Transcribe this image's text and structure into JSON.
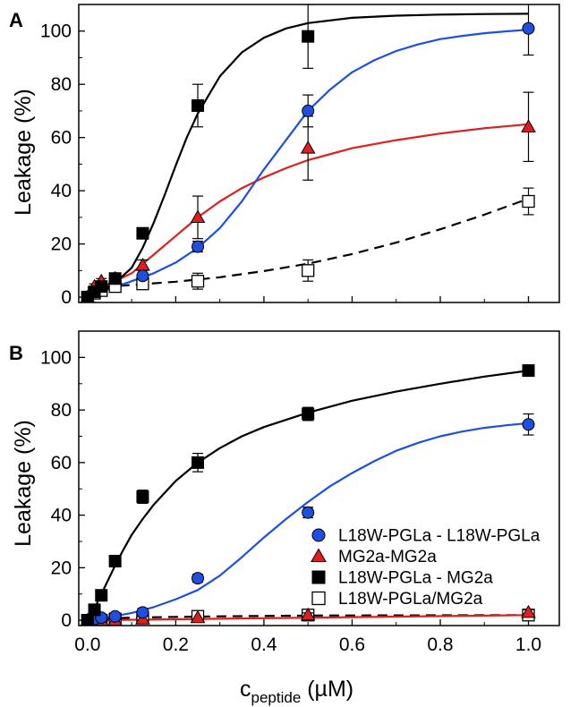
{
  "figure": {
    "y_axis_title": "Leakage (%)",
    "x_axis_title_main": "c",
    "x_axis_title_sub": "peptide",
    "x_axis_title_unit": " (µM)"
  },
  "legend": [
    {
      "label": "L18W-PGLa - L18W-PGLa",
      "marker": "circle",
      "color": "#1f4fe0"
    },
    {
      "label": "MG2a-MG2a",
      "marker": "triangle",
      "color": "#e01e1e"
    },
    {
      "label": "L18W-PGLa - MG2a",
      "marker": "square",
      "color": "#000000"
    },
    {
      "label": "L18W-PGLa/MG2a",
      "marker": "open-square",
      "color": "#000000"
    }
  ],
  "chart_data": [
    {
      "type": "scatter",
      "panel": "A",
      "xlabel": "c_peptide (µM)",
      "ylabel": "Leakage (%)",
      "xlim": [
        -0.02,
        1.07
      ],
      "ylim": [
        -2,
        110
      ],
      "xticks": [
        "0.0",
        "0.2",
        "0.4",
        "0.6",
        "0.8",
        "1.0"
      ],
      "yticks": [
        "0",
        "20",
        "40",
        "60",
        "80",
        "100"
      ],
      "series": [
        {
          "name": "L18W-PGLa - L18W-PGLa",
          "marker": "circle",
          "color": "#1f4fe0",
          "line": "solid",
          "x": [
            0,
            0.0156,
            0.03125,
            0.0625,
            0.125,
            0.25,
            0.5,
            1.0
          ],
          "y": [
            0,
            2,
            4,
            7,
            8,
            19,
            70,
            101
          ],
          "err": [
            0.5,
            0.5,
            1,
            1,
            1,
            2,
            6,
            10
          ],
          "fit_x": [
            0.0,
            0.05,
            0.1,
            0.15,
            0.2,
            0.25,
            0.3,
            0.35,
            0.4,
            0.45,
            0.5,
            0.55,
            0.6,
            0.65,
            0.7,
            0.75,
            0.8,
            0.85,
            0.9,
            0.95,
            1.0
          ],
          "fit_y": [
            1.5,
            3,
            6,
            9,
            13,
            18.5,
            26,
            36,
            48,
            59,
            70,
            78,
            84.5,
            89,
            92.5,
            95,
            97,
            98.2,
            99.2,
            99.9,
            100.5
          ]
        },
        {
          "name": "MG2a-MG2a",
          "marker": "triangle",
          "color": "#e01e1e",
          "line": "solid",
          "x": [
            0,
            0.0156,
            0.03125,
            0.0625,
            0.125,
            0.25,
            0.5,
            1.0
          ],
          "y": [
            0,
            4,
            6,
            7,
            12,
            30,
            56,
            64
          ],
          "err": [
            0.5,
            1,
            1,
            1,
            2,
            8,
            12,
            13
          ],
          "fit_x": [
            0.0,
            0.05,
            0.1,
            0.15,
            0.2,
            0.25,
            0.3,
            0.35,
            0.4,
            0.45,
            0.5,
            0.6,
            0.7,
            0.8,
            0.9,
            1.0
          ],
          "fit_y": [
            2.5,
            5,
            9,
            16,
            23,
            30,
            36,
            41,
            45,
            48.5,
            51.5,
            56,
            59,
            61.5,
            63.5,
            65
          ]
        },
        {
          "name": "L18W-PGLa - MG2a",
          "marker": "square",
          "color": "#000000",
          "line": "solid",
          "x": [
            0,
            0.0156,
            0.03125,
            0.0625,
            0.125,
            0.25,
            0.5,
            1.0
          ],
          "y": [
            0,
            2,
            4,
            7,
            24,
            72,
            98,
            null
          ],
          "err": [
            0.5,
            0.5,
            1,
            1.5,
            2,
            8,
            12,
            0
          ],
          "fit_x": [
            0.0,
            0.05,
            0.1,
            0.125,
            0.15,
            0.175,
            0.2,
            0.225,
            0.25,
            0.3,
            0.35,
            0.4,
            0.45,
            0.5,
            0.6,
            0.7,
            0.8,
            0.9,
            1.0
          ],
          "fit_y": [
            0.5,
            3.5,
            11,
            18.5,
            28,
            38.5,
            49.5,
            60,
            69,
            83,
            92,
            97.5,
            101,
            103,
            105,
            105.8,
            106.2,
            106.4,
            106.5
          ]
        },
        {
          "name": "L18W-PGLa/MG2a",
          "marker": "open-square",
          "color": "#000000",
          "line": "dashed",
          "x": [
            0,
            0.0156,
            0.03125,
            0.0625,
            0.125,
            0.25,
            0.5,
            1.0
          ],
          "y": [
            0,
            1.5,
            2.5,
            4,
            5,
            6,
            10,
            36
          ],
          "err": [
            0.5,
            0.5,
            0.5,
            1,
            1,
            3,
            4,
            5
          ],
          "fit_x": [
            0.0,
            0.05,
            0.1,
            0.2,
            0.3,
            0.4,
            0.5,
            0.6,
            0.7,
            0.8,
            0.9,
            1.0
          ],
          "fit_y": [
            3.5,
            4,
            4.6,
            5.8,
            7.5,
            9.8,
            12.6,
            16.2,
            20.5,
            25.5,
            31,
            37
          ]
        }
      ]
    },
    {
      "type": "scatter",
      "panel": "B",
      "xlabel": "c_peptide (µM)",
      "ylabel": "Leakage (%)",
      "xlim": [
        -0.02,
        1.07
      ],
      "ylim": [
        -2,
        110
      ],
      "xticks": [
        "0.0",
        "0.2",
        "0.4",
        "0.6",
        "0.8",
        "1.0"
      ],
      "yticks": [
        "0",
        "20",
        "40",
        "60",
        "80",
        "100"
      ],
      "series": [
        {
          "name": "L18W-PGLa - L18W-PGLa",
          "marker": "circle",
          "color": "#1f4fe0",
          "line": "solid",
          "x": [
            0,
            0.0156,
            0.03125,
            0.0625,
            0.125,
            0.25,
            0.5,
            1.0
          ],
          "y": [
            0,
            0.5,
            1,
            1.5,
            3,
            16,
            41,
            74.5
          ],
          "err": [
            0.5,
            0.5,
            0.5,
            1,
            1.5,
            1.5,
            2,
            4
          ],
          "fit_x": [
            0.0,
            0.05,
            0.1,
            0.15,
            0.2,
            0.25,
            0.3,
            0.35,
            0.4,
            0.45,
            0.5,
            0.55,
            0.6,
            0.65,
            0.7,
            0.75,
            0.8,
            0.85,
            0.9,
            0.95,
            1.0
          ],
          "fit_y": [
            0.5,
            1.2,
            2.8,
            5,
            8,
            11.5,
            17,
            24,
            31.5,
            38.5,
            45,
            51,
            56,
            60.5,
            64.5,
            67.5,
            70,
            71.8,
            73.2,
            74.2,
            75
          ]
        },
        {
          "name": "MG2a-MG2a",
          "marker": "triangle",
          "color": "#e01e1e",
          "line": "solid",
          "x": [
            0,
            0.0156,
            0.03125,
            0.0625,
            0.125,
            0.25,
            0.5,
            1.0
          ],
          "y": [
            0,
            0,
            0,
            0,
            0.5,
            1,
            2,
            3
          ],
          "err": [
            0.3,
            0.3,
            0.3,
            0.3,
            0.5,
            0.5,
            0.8,
            1
          ],
          "fit_x": [
            0.0,
            1.0
          ],
          "fit_y": [
            0,
            2
          ]
        },
        {
          "name": "L18W-PGLa - MG2a",
          "marker": "square",
          "color": "#000000",
          "line": "solid",
          "x": [
            0,
            0.0156,
            0.03125,
            0.0625,
            0.125,
            0.25,
            0.5,
            1.0
          ],
          "y": [
            0,
            4,
            9.5,
            22.5,
            47,
            60,
            78.5,
            95
          ],
          "err": [
            0.5,
            1,
            1.5,
            2,
            2.5,
            3.5,
            2.5,
            1.5
          ],
          "fit_x": [
            0.0,
            0.02,
            0.04,
            0.06,
            0.08,
            0.1,
            0.125,
            0.15,
            0.2,
            0.25,
            0.3,
            0.35,
            0.4,
            0.5,
            0.6,
            0.7,
            0.8,
            0.9,
            1.0
          ],
          "fit_y": [
            0,
            6,
            13,
            20,
            26.5,
            32.5,
            38.5,
            44,
            53,
            60,
            65.5,
            70,
            73.5,
            79,
            83.5,
            87,
            90,
            92.7,
            95
          ]
        },
        {
          "name": "L18W-PGLa/MG2a",
          "marker": "open-square",
          "color": "#000000",
          "line": "dashed",
          "x": [
            0,
            0.0156,
            0.03125,
            0.0625,
            0.125,
            0.25,
            0.5,
            1.0
          ],
          "y": [
            0,
            0,
            0,
            0.5,
            1,
            1.5,
            2,
            2
          ],
          "err": [
            0.3,
            0.3,
            0.3,
            0.5,
            0.5,
            0.8,
            1,
            1
          ],
          "fit_x": [
            0.0,
            0.1,
            0.2,
            0.3,
            0.5,
            1.0
          ],
          "fit_y": [
            0.5,
            1,
            1.3,
            1.5,
            1.8,
            2
          ]
        }
      ]
    }
  ]
}
